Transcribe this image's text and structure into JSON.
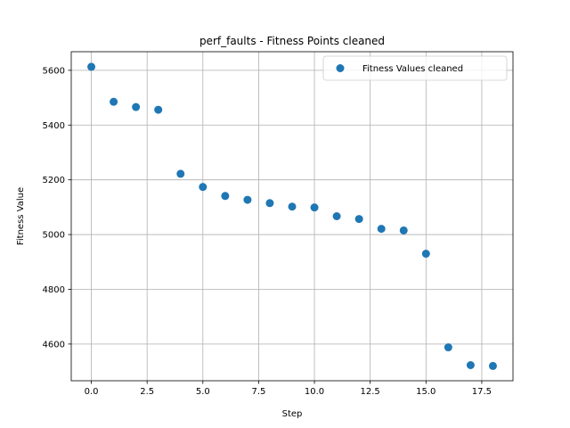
{
  "chart_data": {
    "type": "scatter",
    "title": "perf_faults - Fitness Points cleaned",
    "xlabel": "Step",
    "ylabel": "Fitness Value",
    "xlim": [
      -0.9,
      18.9
    ],
    "ylim": [
      4466,
      5668
    ],
    "xticks": [
      0.0,
      2.5,
      5.0,
      7.5,
      10.0,
      12.5,
      15.0,
      17.5
    ],
    "xtick_labels": [
      "0.0",
      "2.5",
      "5.0",
      "7.5",
      "10.0",
      "12.5",
      "15.0",
      "17.5"
    ],
    "yticks": [
      4600,
      4800,
      5000,
      5200,
      5400,
      5600
    ],
    "ytick_labels": [
      "4600",
      "4800",
      "5000",
      "5200",
      "5400",
      "5600"
    ],
    "grid": true,
    "legend_position": "top-right",
    "series": [
      {
        "name": "Fitness Values cleaned",
        "color": "#1f77b4",
        "x": [
          0,
          1,
          2,
          3,
          4,
          5,
          6,
          7,
          8,
          9,
          10,
          11,
          12,
          13,
          14,
          15,
          16,
          17,
          18
        ],
        "y": [
          5613,
          5485,
          5466,
          5456,
          5222,
          5174,
          5141,
          5127,
          5115,
          5102,
          5099,
          5067,
          5057,
          5021,
          5015,
          4930,
          4588,
          4523,
          4520
        ]
      }
    ]
  }
}
